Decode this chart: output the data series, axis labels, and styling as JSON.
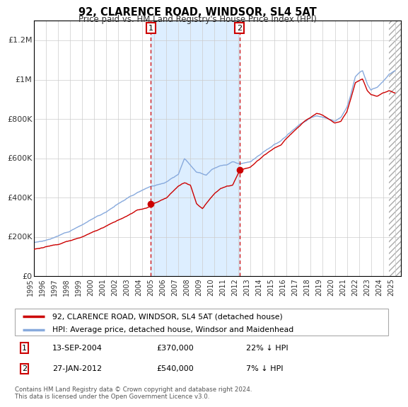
{
  "title": "92, CLARENCE ROAD, WINDSOR, SL4 5AT",
  "subtitle": "Price paid vs. HM Land Registry's House Price Index (HPI)",
  "xlim_start": 1995.0,
  "xlim_end": 2025.5,
  "ylim": [
    0,
    1300000
  ],
  "hpi_color": "#88aadd",
  "price_color": "#cc0000",
  "purchase1_date": 2004.71,
  "purchase1_price": 370000,
  "purchase2_date": 2012.07,
  "purchase2_price": 540000,
  "shade_start": 2004.71,
  "shade_end": 2012.07,
  "shade_color": "#ddeeff",
  "hatch_start": 2024.5,
  "legend_price_label": "92, CLARENCE ROAD, WINDSOR, SL4 5AT (detached house)",
  "legend_hpi_label": "HPI: Average price, detached house, Windsor and Maidenhead",
  "note1_date": "13-SEP-2004",
  "note1_price": "£370,000",
  "note1_hpi": "22% ↓ HPI",
  "note2_date": "27-JAN-2012",
  "note2_price": "£540,000",
  "note2_hpi": "7% ↓ HPI",
  "footer": "Contains HM Land Registry data © Crown copyright and database right 2024.\nThis data is licensed under the Open Government Licence v3.0.",
  "yticks": [
    0,
    200000,
    400000,
    600000,
    800000,
    1000000,
    1200000
  ],
  "ytick_labels": [
    "£0",
    "£200K",
    "£400K",
    "£600K",
    "£800K",
    "£1M",
    "£1.2M"
  ],
  "xticks": [
    1995,
    1996,
    1997,
    1998,
    1999,
    2000,
    2001,
    2002,
    2003,
    2004,
    2005,
    2006,
    2007,
    2008,
    2009,
    2010,
    2011,
    2012,
    2013,
    2014,
    2015,
    2016,
    2017,
    2018,
    2019,
    2020,
    2021,
    2022,
    2023,
    2024,
    2025
  ],
  "background_color": "#ffffff",
  "grid_color": "#cccccc"
}
